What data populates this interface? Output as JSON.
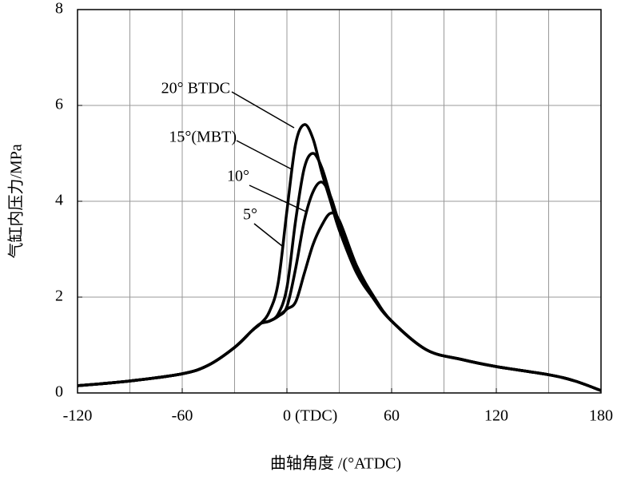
{
  "chart_data": {
    "type": "line",
    "y_label": "气缸内压力/MPa",
    "x_label": "曲轴角度 /(°ATDC)",
    "x": [
      -120,
      -90,
      -60,
      -45,
      -30,
      -20,
      -15,
      -10,
      -5,
      0,
      5,
      10,
      15,
      20,
      25,
      30,
      40,
      50,
      60,
      80,
      100,
      120,
      150,
      165,
      180
    ],
    "series": [
      {
        "name": "20° BTDC",
        "color": "#000000",
        "values": [
          0.15,
          0.25,
          0.4,
          0.58,
          0.95,
          1.3,
          1.45,
          1.7,
          2.3,
          3.8,
          5.2,
          5.6,
          5.3,
          4.6,
          4.0,
          3.4,
          2.5,
          1.95,
          1.5,
          0.9,
          0.7,
          0.55,
          0.38,
          0.25,
          0.05
        ]
      },
      {
        "name": "15°(MBT)",
        "color": "#000000",
        "values": [
          0.15,
          0.25,
          0.4,
          0.58,
          0.95,
          1.3,
          1.45,
          1.5,
          1.65,
          2.2,
          3.6,
          4.7,
          5.0,
          4.7,
          4.1,
          3.5,
          2.55,
          1.95,
          1.5,
          0.9,
          0.7,
          0.55,
          0.38,
          0.25,
          0.05
        ]
      },
      {
        "name": "10°",
        "color": "#000000",
        "values": [
          0.15,
          0.25,
          0.4,
          0.58,
          0.95,
          1.3,
          1.45,
          1.5,
          1.6,
          1.8,
          2.6,
          3.6,
          4.2,
          4.4,
          4.1,
          3.55,
          2.6,
          1.95,
          1.5,
          0.9,
          0.7,
          0.55,
          0.38,
          0.25,
          0.05
        ]
      },
      {
        "name": "5°",
        "color": "#000000",
        "values": [
          0.15,
          0.25,
          0.4,
          0.58,
          0.95,
          1.3,
          1.45,
          1.5,
          1.6,
          1.75,
          1.9,
          2.5,
          3.1,
          3.5,
          3.75,
          3.6,
          2.65,
          2.0,
          1.5,
          0.9,
          0.7,
          0.55,
          0.38,
          0.25,
          0.05
        ]
      }
    ],
    "xlim": [
      -120,
      180
    ],
    "ylim": [
      0,
      8
    ],
    "xticks": [
      -120,
      -60,
      {
        "value": 0,
        "label": "0 (TDC)"
      },
      60,
      120,
      180
    ],
    "yticks": [
      0,
      2,
      4,
      6,
      8
    ],
    "xgrid": [
      -90,
      -60,
      -30,
      0,
      30,
      60,
      90,
      120,
      150
    ],
    "ygrid": [
      2,
      4,
      6
    ],
    "grid": true
  }
}
